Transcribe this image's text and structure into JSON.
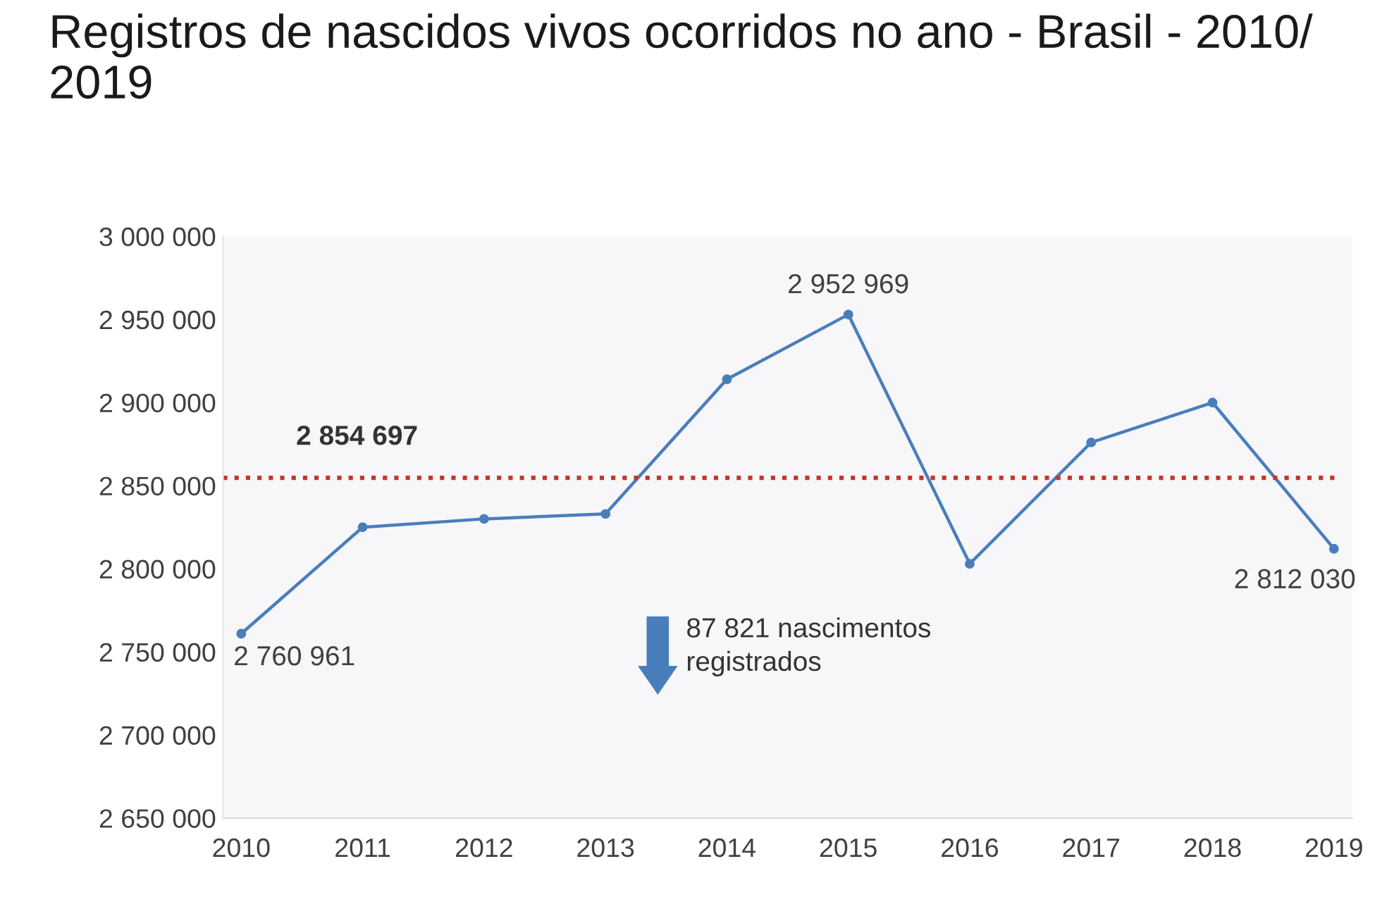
{
  "chart_data": {
    "type": "line",
    "title": "Registros de nascidos vivos ocorridos no ano - Brasil - 2010/ 2019",
    "categories": [
      "2010",
      "2011",
      "2012",
      "2013",
      "2014",
      "2015",
      "2016",
      "2017",
      "2018",
      "2019"
    ],
    "series": [
      {
        "color": "#4a7ebb",
        "values": [
          2760961,
          2825000,
          2830000,
          2833000,
          2914000,
          2952969,
          2803000,
          2876000,
          2900000,
          2812030
        ],
        "value_labels": [
          "2 760 961",
          null,
          null,
          null,
          null,
          "2 952 969",
          null,
          null,
          null,
          "2 812 030"
        ]
      }
    ],
    "ylim": [
      2650000,
      3000000
    ],
    "yticks": [
      {
        "value": 2650000,
        "label": "2 650 000"
      },
      {
        "value": 2700000,
        "label": "2 700 000"
      },
      {
        "value": 2750000,
        "label": "2 750 000"
      },
      {
        "value": 2800000,
        "label": "2 800 000"
      },
      {
        "value": 2850000,
        "label": "2 850 000"
      },
      {
        "value": 2900000,
        "label": "2 900 000"
      },
      {
        "value": 2950000,
        "label": "2 950 000"
      },
      {
        "value": 3000000,
        "label": "3 000 000"
      }
    ],
    "ref_lines": [
      {
        "axis": "y",
        "value": 2854697,
        "label": "2 854 697",
        "color": "#c0392b",
        "line_style": "dotted"
      }
    ],
    "annotations": [
      "87 821 nascimentos\nregistrados"
    ],
    "marker": "circle",
    "line_style": "solid",
    "grid": false,
    "legend": false
  }
}
